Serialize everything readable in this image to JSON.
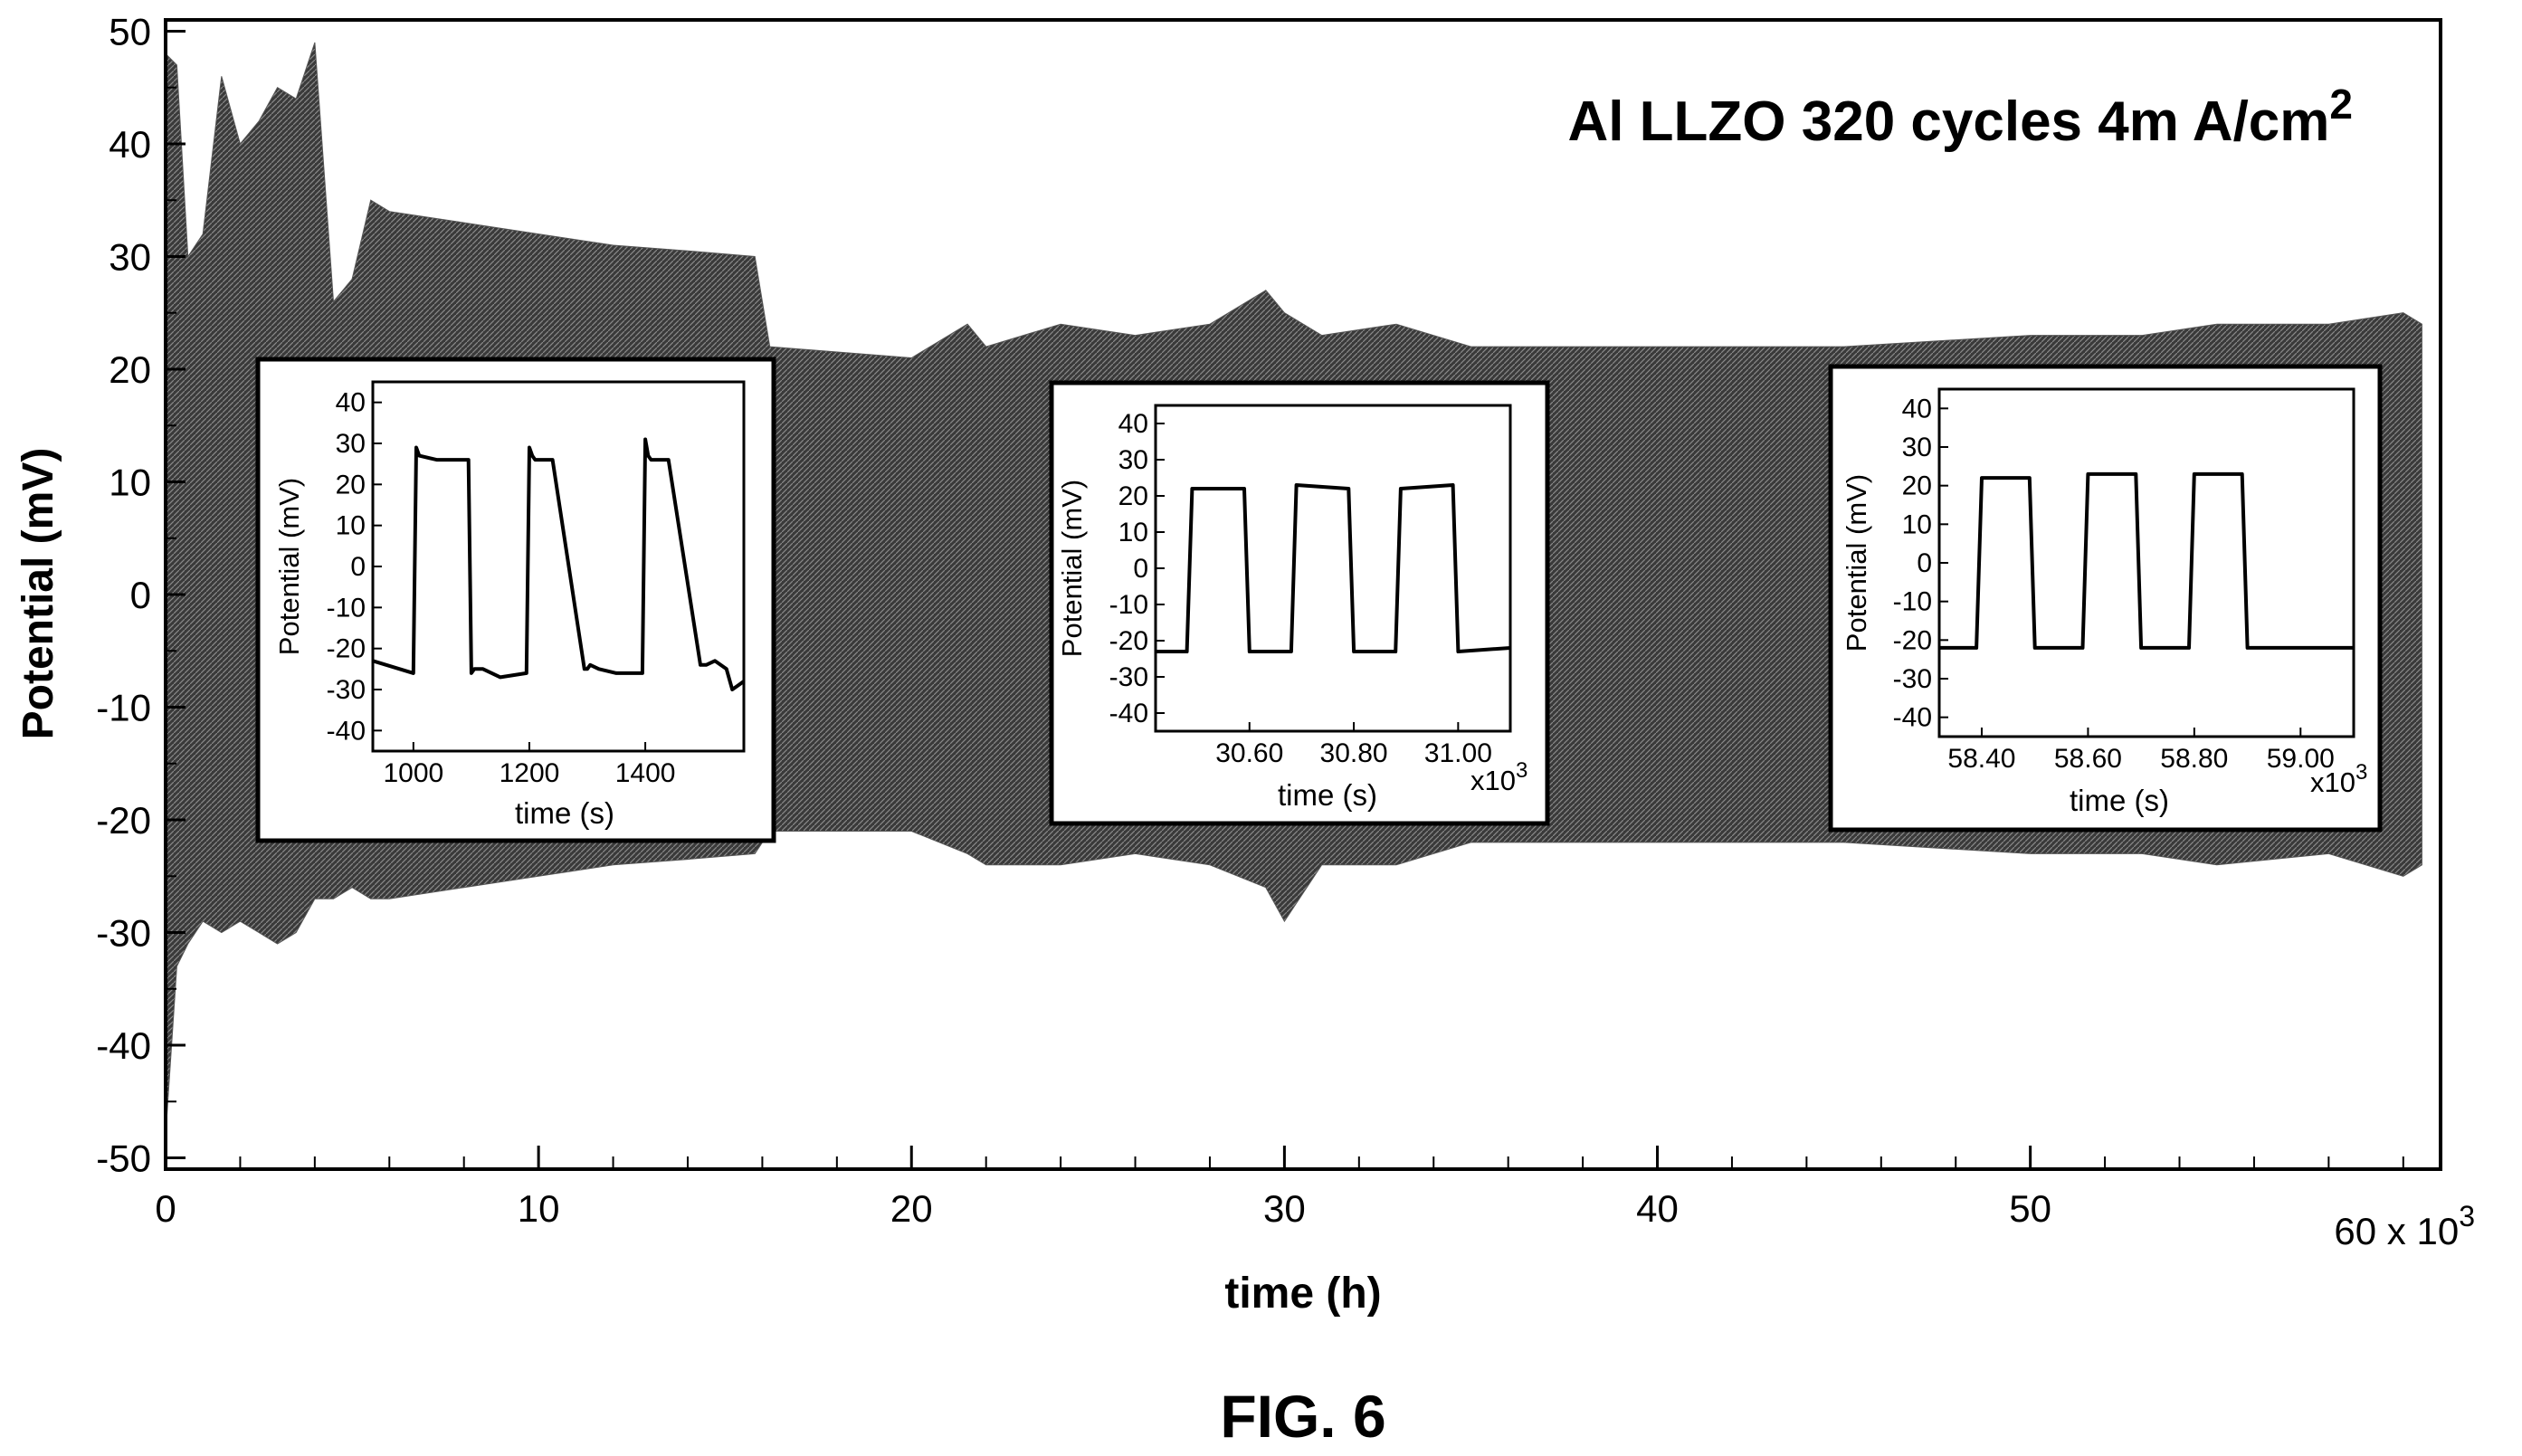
{
  "figure_caption": "FIG. 6",
  "chart_data": [
    {
      "type": "area",
      "annotation": {
        "text": "Al LLZO 320 cycles 4m A/cm",
        "superscript": "2"
      },
      "xlabel": "time (h)",
      "ylabel": "Potential (mV)",
      "x_multiplier": "60 x 10",
      "x_multiplier_exp": "3",
      "xlim": [
        0,
        61
      ],
      "ylim": [
        -51,
        51
      ],
      "x_ticks": [
        0,
        10,
        20,
        30,
        40,
        50
      ],
      "x_tick_labels": [
        "0",
        "10",
        "20",
        "30",
        "40",
        "50"
      ],
      "y_ticks": [
        50,
        40,
        30,
        20,
        10,
        0,
        -10,
        -20,
        -30,
        -40,
        -50
      ],
      "y_tick_labels": [
        "50",
        "40",
        "30",
        "20",
        "10",
        "0",
        "-10",
        "-20",
        "-30",
        "-40",
        "-50"
      ],
      "x_minor_step": 2,
      "y_minor_step": 5,
      "series": [
        {
          "fill": "#555555",
          "x": [
            0.0,
            0.3,
            0.6,
            1.0,
            1.5,
            2.0,
            2.5,
            3.0,
            3.5,
            4.0,
            4.5,
            5.0,
            5.5,
            6.0,
            8.0,
            10.0,
            12.0,
            14.0,
            15.8,
            16.2,
            20.0,
            21.5,
            22.0,
            24.0,
            26.0,
            28.0,
            29.5,
            30.0,
            31.0,
            33.0,
            35.0,
            40.0,
            45.0,
            50.0,
            53.0,
            55.0,
            58.0,
            60.0,
            60.5
          ],
          "upper": [
            48.0,
            47.0,
            30.0,
            32.0,
            46.0,
            40.0,
            42.0,
            45.0,
            44.0,
            49.0,
            26.0,
            28.0,
            35.0,
            34.0,
            33.0,
            32.0,
            31.0,
            30.5,
            30.0,
            22.0,
            21.0,
            24.0,
            22.0,
            24.0,
            23.0,
            24.0,
            27.0,
            25.0,
            23.0,
            24.0,
            22.0,
            22.0,
            22.0,
            23.0,
            23.0,
            24.0,
            24.0,
            25.0,
            24.0
          ],
          "lower": [
            -48.0,
            -33.0,
            -31.0,
            -29.0,
            -30.0,
            -29.0,
            -30.0,
            -31.0,
            -30.0,
            -27.0,
            -27.0,
            -26.0,
            -27.0,
            -27.0,
            -26.0,
            -25.0,
            -24.0,
            -23.5,
            -23.0,
            -21.0,
            -21.0,
            -23.0,
            -24.0,
            -24.0,
            -23.0,
            -24.0,
            -26.0,
            -29.0,
            -24.0,
            -24.0,
            -22.0,
            -22.0,
            -22.0,
            -23.0,
            -23.0,
            -24.0,
            -23.0,
            -25.0,
            -24.0
          ]
        }
      ]
    },
    {
      "type": "line",
      "ylabel": "Potential (mV)",
      "xlabel": "time (s)",
      "xlim": [
        930,
        1570
      ],
      "ylim": [
        -45,
        45
      ],
      "x_ticks": [
        1000,
        1200,
        1400
      ],
      "x_tick_labels": [
        "1000",
        "1200",
        "1400"
      ],
      "y_ticks": [
        40,
        30,
        20,
        10,
        0,
        -10,
        -20,
        -30,
        -40
      ],
      "y_tick_labels": [
        "40",
        "30",
        "20",
        "10",
        "0",
        "-10",
        "-20",
        "-30",
        "-40"
      ],
      "series": [
        {
          "x": [
            930,
            1000,
            1005,
            1010,
            1040,
            1095,
            1100,
            1105,
            1120,
            1150,
            1195,
            1200,
            1205,
            1210,
            1240,
            1295,
            1300,
            1305,
            1320,
            1350,
            1395,
            1400,
            1405,
            1410,
            1440,
            1495,
            1500,
            1505,
            1520,
            1540,
            1550,
            1560,
            1570
          ],
          "y": [
            -23,
            -26,
            29,
            27,
            26,
            26,
            -26,
            -25,
            -25,
            -27,
            -26,
            29,
            27,
            26,
            26,
            -25,
            -25,
            -24,
            -25,
            -26,
            -26,
            31,
            27,
            26,
            26,
            -24,
            -24,
            -24,
            -23,
            -25,
            -30,
            -29,
            -28
          ]
        }
      ]
    },
    {
      "type": "line",
      "ylabel": "Potential (mV)",
      "xlabel": "time (s)",
      "x_multiplier": "x10",
      "x_multiplier_exp": "3",
      "xlim": [
        30.42,
        31.1
      ],
      "ylim": [
        -45,
        45
      ],
      "x_ticks": [
        30.6,
        30.8,
        31.0
      ],
      "x_tick_labels": [
        "30.60",
        "30.80",
        "31.00"
      ],
      "y_ticks": [
        40,
        30,
        20,
        10,
        0,
        -10,
        -20,
        -30,
        -40
      ],
      "y_tick_labels": [
        "40",
        "30",
        "20",
        "10",
        "0",
        "-10",
        "-20",
        "-30",
        "-40"
      ],
      "series": [
        {
          "x": [
            30.42,
            30.48,
            30.49,
            30.59,
            30.6,
            30.68,
            30.69,
            30.79,
            30.8,
            30.88,
            30.89,
            30.99,
            31.0,
            31.1
          ],
          "y": [
            -23,
            -23,
            22,
            22,
            -23,
            -23,
            23,
            22,
            -23,
            -23,
            22,
            23,
            -23,
            -22
          ]
        }
      ]
    },
    {
      "type": "line",
      "ylabel": "Potential (mV)",
      "xlabel": "time (s)",
      "x_multiplier": "x10",
      "x_multiplier_exp": "3",
      "xlim": [
        58.32,
        59.1
      ],
      "ylim": [
        -45,
        45
      ],
      "x_ticks": [
        58.4,
        58.6,
        58.8,
        59.0
      ],
      "x_tick_labels": [
        "58.40",
        "58.60",
        "58.80",
        "59.00"
      ],
      "y_ticks": [
        40,
        30,
        20,
        10,
        0,
        -10,
        -20,
        -30,
        -40
      ],
      "y_tick_labels": [
        "40",
        "30",
        "20",
        "10",
        "0",
        "-10",
        "-20",
        "-30",
        "-40"
      ],
      "series": [
        {
          "x": [
            58.32,
            58.39,
            58.4,
            58.49,
            58.5,
            58.59,
            58.6,
            58.69,
            58.7,
            58.79,
            58.8,
            58.89,
            58.9,
            59.1
          ],
          "y": [
            -22,
            -22,
            22,
            22,
            -22,
            -22,
            23,
            23,
            -22,
            -22,
            23,
            23,
            -22,
            -22
          ]
        }
      ]
    }
  ]
}
